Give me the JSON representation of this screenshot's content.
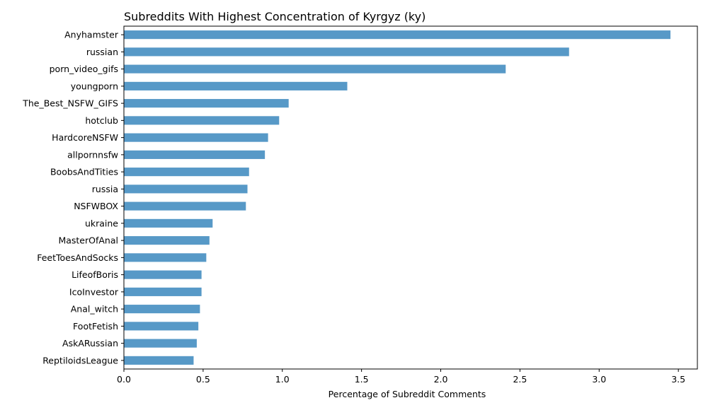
{
  "chart_data": {
    "type": "bar",
    "orientation": "horizontal",
    "title": "Subreddits With Highest Concentration of Kyrgyz (ky)",
    "xlabel": "Percentage of Subreddit Comments",
    "ylabel": "",
    "xlim": [
      0,
      3.62
    ],
    "xticks": [
      "0.0",
      "0.5",
      "1.0",
      "1.5",
      "2.0",
      "2.5",
      "3.0",
      "3.5"
    ],
    "grid": false,
    "bar_color": "#5799c7",
    "categories": [
      "Anyhamster",
      "russian",
      "porn_video_gifs",
      "youngporn",
      "The_Best_NSFW_GIFS",
      "hotclub",
      "HardcoreNSFW",
      "allpornnsfw",
      "BoobsAndTities",
      "russia",
      "NSFWBOX",
      "ukraine",
      "MasterOfAnal",
      "FeetToesAndSocks",
      "LifeofBoris",
      "IcoInvestor",
      "Anal_witch",
      "FootFetish",
      "AskARussian",
      "ReptiloidsLeague"
    ],
    "values": [
      3.45,
      2.81,
      2.41,
      1.41,
      1.04,
      0.98,
      0.91,
      0.89,
      0.79,
      0.78,
      0.77,
      0.56,
      0.54,
      0.52,
      0.49,
      0.49,
      0.48,
      0.47,
      0.46,
      0.44
    ]
  }
}
